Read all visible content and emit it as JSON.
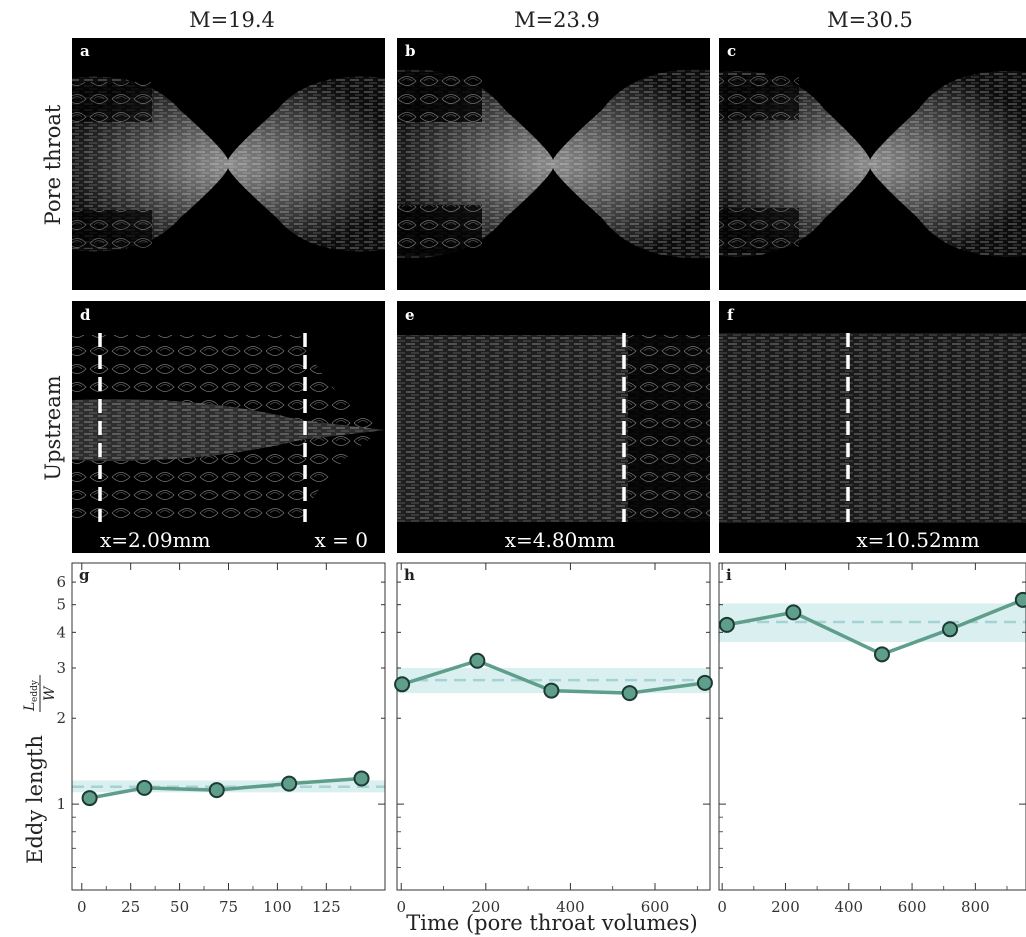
{
  "figure": {
    "columns": [
      {
        "title": "M=19.4",
        "flow_top": "a",
        "flow_bottom": "d",
        "chart": "g",
        "markers": [
          "x=2.09mm",
          "x = 0"
        ]
      },
      {
        "title": "M=23.9",
        "flow_top": "b",
        "flow_bottom": "e",
        "chart": "h",
        "markers": [
          "x=4.80mm"
        ]
      },
      {
        "title": "M=30.5",
        "flow_top": "c",
        "flow_bottom": "f",
        "chart": "i",
        "markers": [
          "x=10.52mm"
        ]
      }
    ],
    "rows": [
      "Pore throat",
      "Upstream"
    ],
    "colors": {
      "line": "#5f9e8a",
      "marker_fill": "#5f9e8a",
      "marker_edge": "#1c3a31",
      "band": "#cde9ea",
      "mean_dash": "#a6d2d4",
      "flow_bg": "#000000"
    }
  },
  "chart_data": [
    {
      "type": "line",
      "panel": "g",
      "xlim": [
        -5,
        155
      ],
      "ylim": [
        0.5,
        7
      ],
      "yscale": "log",
      "x": [
        4,
        32,
        69,
        106,
        143
      ],
      "y": [
        1.05,
        1.14,
        1.12,
        1.18,
        1.23
      ],
      "mean": 1.15,
      "band": [
        1.1,
        1.21
      ],
      "xticks": [
        0,
        25,
        50,
        75,
        100,
        125
      ],
      "xticklabels": [
        "0",
        "25",
        "50",
        "75",
        "100",
        "125"
      ],
      "yticks": [
        1,
        2,
        3,
        4,
        5,
        6
      ],
      "yticklabels": [
        "1",
        "2",
        "3",
        "4",
        "5",
        "6"
      ]
    },
    {
      "type": "line",
      "panel": "h",
      "xlim": [
        -10,
        730
      ],
      "ylim": [
        0.5,
        7
      ],
      "yscale": "log",
      "x": [
        2,
        180,
        355,
        540,
        718
      ],
      "y": [
        2.63,
        3.18,
        2.5,
        2.45,
        2.66
      ],
      "mean": 2.72,
      "band": [
        2.45,
        3.0
      ],
      "xticks": [
        0,
        200,
        400,
        600
      ],
      "xticklabels": [
        "0",
        "200",
        "400",
        "600"
      ],
      "yticks": [
        1,
        2,
        3,
        4,
        5,
        6
      ],
      "yticklabels": []
    },
    {
      "type": "line",
      "panel": "i",
      "xlim": [
        -10,
        960
      ],
      "ylim": [
        0.5,
        7
      ],
      "yscale": "log",
      "x": [
        15,
        225,
        505,
        720,
        950
      ],
      "y": [
        4.25,
        4.7,
        3.35,
        4.1,
        5.2
      ],
      "mean": 4.35,
      "band": [
        3.7,
        5.05
      ],
      "xticks": [
        0,
        200,
        400,
        600,
        800
      ],
      "xticklabels": [
        "0",
        "200",
        "400",
        "600",
        "800"
      ],
      "yticks": [
        1,
        2,
        3,
        4,
        5,
        6
      ],
      "yticklabels": []
    }
  ],
  "axes": {
    "ylabel_text": "Eddy length",
    "ylabel_fraction_num": "L",
    "ylabel_fraction_sub": "eddy",
    "ylabel_fraction_den": "W",
    "xlabel": "Time (pore throat volumes)"
  }
}
